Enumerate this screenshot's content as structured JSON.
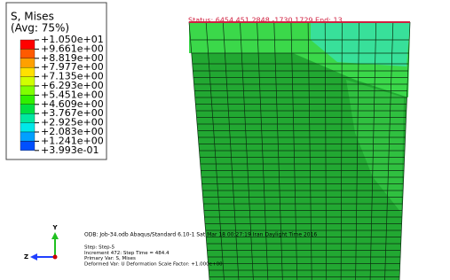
{
  "legend": {
    "title": "S, Mises",
    "subtitle": "(Avg: 75%)",
    "labels": [
      "+1.050e+01",
      "+9.661e+00",
      "+8.819e+00",
      "+7.977e+00",
      "+7.135e+00",
      "+6.293e+00",
      "+5.451e+00",
      "+4.609e+00",
      "+3.767e+00",
      "+2.925e+00",
      "+2.083e+00",
      "+1.241e+00",
      "+3.993e-01"
    ],
    "colors": [
      "#ff0000",
      "#ff5a00",
      "#ffa000",
      "#ffe000",
      "#d0ff00",
      "#80ff00",
      "#30f000",
      "#00e040",
      "#00e8a0",
      "#00e8e8",
      "#00a0ff",
      "#0050ff",
      "#0000ff"
    ]
  },
  "status": "Status: 6454   451   2848   -1730 1729  End: 13",
  "triad": {
    "y": "Y",
    "z": "Z"
  },
  "info": [
    "ODB: Job-34.odb    Abaqus/Standard 6.10-1    Sat Mar 18 00:27:19 Iran Daylight Time 2016",
    "Step: Step-5",
    "Increment    472: Step Time =    484.4",
    "Primary Var: S, Mises",
    "Deformed Var: U   Deformation Scale Factor: +1.000e+00"
  ]
}
